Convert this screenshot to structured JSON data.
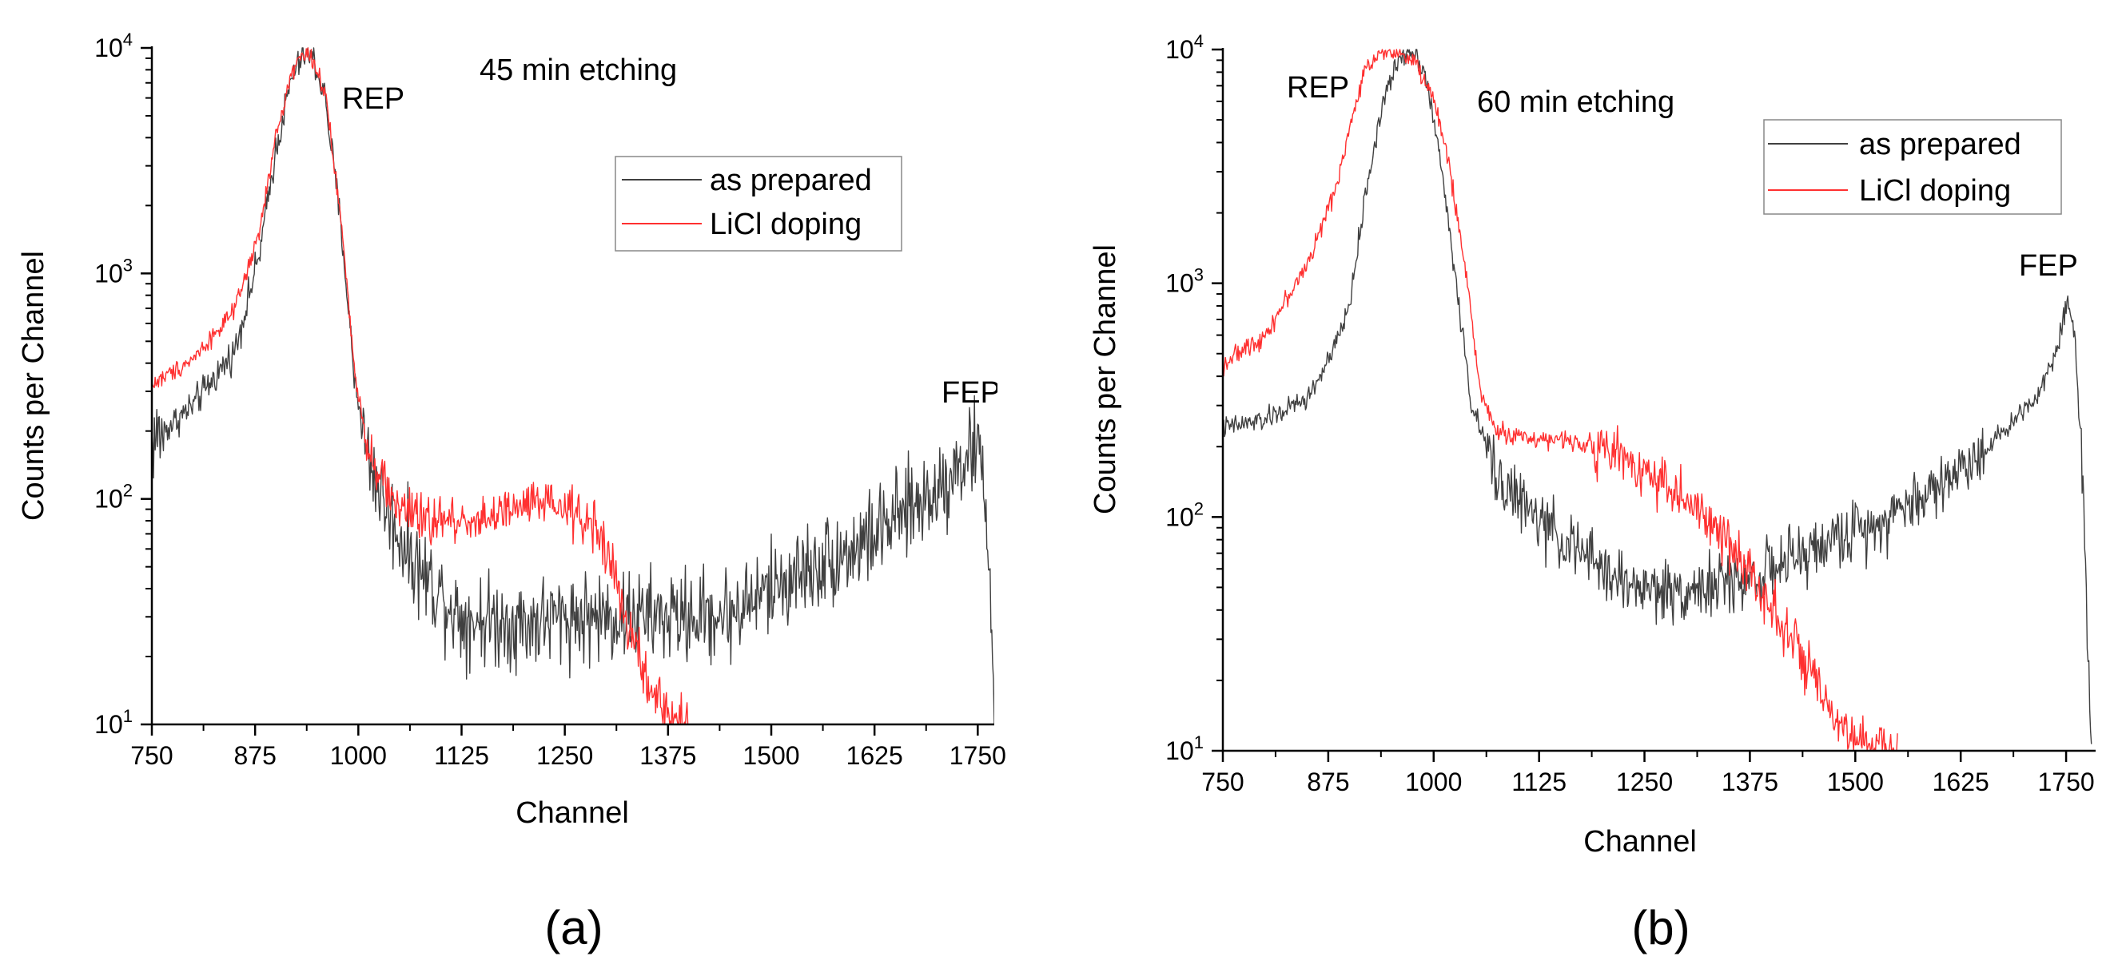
{
  "chart_data": [
    {
      "type": "line",
      "panel_label": "(a)",
      "annotation": "45 min etching",
      "peak_labels": {
        "rep": "REP",
        "fep": "FEP"
      },
      "xlabel": "Channel",
      "ylabel": "Counts per Channel",
      "xlim": [
        750,
        1770
      ],
      "ylim": [
        10,
        10000
      ],
      "yscale": "log",
      "x_ticks": [
        750,
        875,
        1000,
        1125,
        1250,
        1375,
        1500,
        1625,
        1750
      ],
      "x_tick_labels": [
        "750",
        "875",
        "1000",
        "1125",
        "1250",
        "1375",
        "1500",
        "1625",
        "1750"
      ],
      "y_tick_labels": [
        {
          "base": "10",
          "exp": "1"
        },
        {
          "base": "10",
          "exp": "2"
        },
        {
          "base": "10",
          "exp": "3"
        },
        {
          "base": "10",
          "exp": "4"
        }
      ],
      "legend_position": "upper-right",
      "series": [
        {
          "name": "as prepared",
          "color": "#404040",
          "noise": 0.22,
          "points": [
            [
              750,
              180
            ],
            [
              800,
              260
            ],
            [
              850,
              450
            ],
            [
              880,
              1200
            ],
            [
              900,
              3500
            ],
            [
              920,
              7500
            ],
            [
              935,
              9500
            ],
            [
              945,
              9000
            ],
            [
              960,
              6000
            ],
            [
              980,
              1500
            ],
            [
              995,
              350
            ],
            [
              1010,
              160
            ],
            [
              1040,
              80
            ],
            [
              1075,
              48
            ],
            [
              1125,
              30
            ],
            [
              1200,
              28
            ],
            [
              1250,
              30
            ],
            [
              1300,
              30
            ],
            [
              1350,
              30
            ],
            [
              1400,
              30
            ],
            [
              1450,
              31
            ],
            [
              1500,
              40
            ],
            [
              1550,
              50
            ],
            [
              1600,
              60
            ],
            [
              1650,
              80
            ],
            [
              1700,
              110
            ],
            [
              1740,
              160
            ],
            [
              1752,
              165
            ],
            [
              1760,
              100
            ],
            [
              1766,
              30
            ],
            [
              1770,
              10
            ]
          ]
        },
        {
          "name": "LiCl doping",
          "color": "#ff3030",
          "noise": 0.12,
          "points": [
            [
              750,
              320
            ],
            [
              800,
              420
            ],
            [
              850,
              680
            ],
            [
              880,
              1500
            ],
            [
              900,
              4000
            ],
            [
              920,
              8000
            ],
            [
              935,
              9600
            ],
            [
              945,
              9000
            ],
            [
              960,
              6200
            ],
            [
              980,
              1600
            ],
            [
              995,
              380
            ],
            [
              1010,
              180
            ],
            [
              1040,
              100
            ],
            [
              1075,
              80
            ],
            [
              1125,
              80
            ],
            [
              1175,
              85
            ],
            [
              1210,
              95
            ],
            [
              1250,
              90
            ],
            [
              1290,
              75
            ],
            [
              1310,
              45
            ],
            [
              1330,
              25
            ],
            [
              1350,
              15
            ],
            [
              1375,
              11
            ],
            [
              1400,
              10
            ]
          ]
        }
      ]
    },
    {
      "type": "line",
      "panel_label": "(b)",
      "annotation": "60 min etching",
      "peak_labels": {
        "rep": "REP",
        "fep": "FEP"
      },
      "xlabel": "Channel",
      "ylabel": "Counts per Channel",
      "xlim": [
        750,
        1785
      ],
      "ylim": [
        10,
        10000
      ],
      "yscale": "log",
      "x_ticks": [
        750,
        875,
        1000,
        1125,
        1250,
        1375,
        1500,
        1625,
        1750
      ],
      "x_tick_labels": [
        "750",
        "875",
        "1000",
        "1125",
        "1250",
        "1375",
        "1500",
        "1625",
        "1750"
      ],
      "y_tick_labels": [
        {
          "base": "10",
          "exp": "1"
        },
        {
          "base": "10",
          "exp": "2"
        },
        {
          "base": "10",
          "exp": "3"
        },
        {
          "base": "10",
          "exp": "4"
        }
      ],
      "legend_position": "upper-right",
      "series": [
        {
          "name": "as prepared",
          "color": "#404040",
          "noise": 0.14,
          "points": [
            [
              750,
              240
            ],
            [
              800,
              260
            ],
            [
              850,
              320
            ],
            [
              880,
              500
            ],
            [
              900,
              800
            ],
            [
              920,
              2500
            ],
            [
              940,
              6000
            ],
            [
              960,
              9300
            ],
            [
              975,
              10000
            ],
            [
              990,
              8000
            ],
            [
              1010,
              3000
            ],
            [
              1030,
              800
            ],
            [
              1045,
              300
            ],
            [
              1075,
              150
            ],
            [
              1125,
              95
            ],
            [
              1175,
              70
            ],
            [
              1225,
              52
            ],
            [
              1275,
              48
            ],
            [
              1325,
              50
            ],
            [
              1375,
              55
            ],
            [
              1425,
              65
            ],
            [
              1475,
              80
            ],
            [
              1525,
              95
            ],
            [
              1575,
              120
            ],
            [
              1625,
              160
            ],
            [
              1675,
              230
            ],
            [
              1720,
              350
            ],
            [
              1740,
              550
            ],
            [
              1752,
              850
            ],
            [
              1760,
              600
            ],
            [
              1770,
              150
            ],
            [
              1780,
              10
            ]
          ]
        },
        {
          "name": "LiCl doping",
          "color": "#ff3030",
          "noise": 0.12,
          "points": [
            [
              750,
              450
            ],
            [
              800,
              600
            ],
            [
              850,
              1200
            ],
            [
              880,
              2300
            ],
            [
              900,
              4500
            ],
            [
              920,
              8500
            ],
            [
              940,
              10000
            ],
            [
              960,
              9700
            ],
            [
              980,
              8500
            ],
            [
              1000,
              6200
            ],
            [
              1020,
              3000
            ],
            [
              1040,
              1000
            ],
            [
              1055,
              350
            ],
            [
              1075,
              230
            ],
            [
              1125,
              215
            ],
            [
              1175,
              210
            ],
            [
              1225,
              180
            ],
            [
              1275,
              140
            ],
            [
              1325,
              95
            ],
            [
              1375,
              60
            ],
            [
              1425,
              30
            ],
            [
              1450,
              20
            ],
            [
              1475,
              13
            ],
            [
              1500,
              11
            ],
            [
              1550,
              10
            ]
          ]
        }
      ]
    }
  ]
}
